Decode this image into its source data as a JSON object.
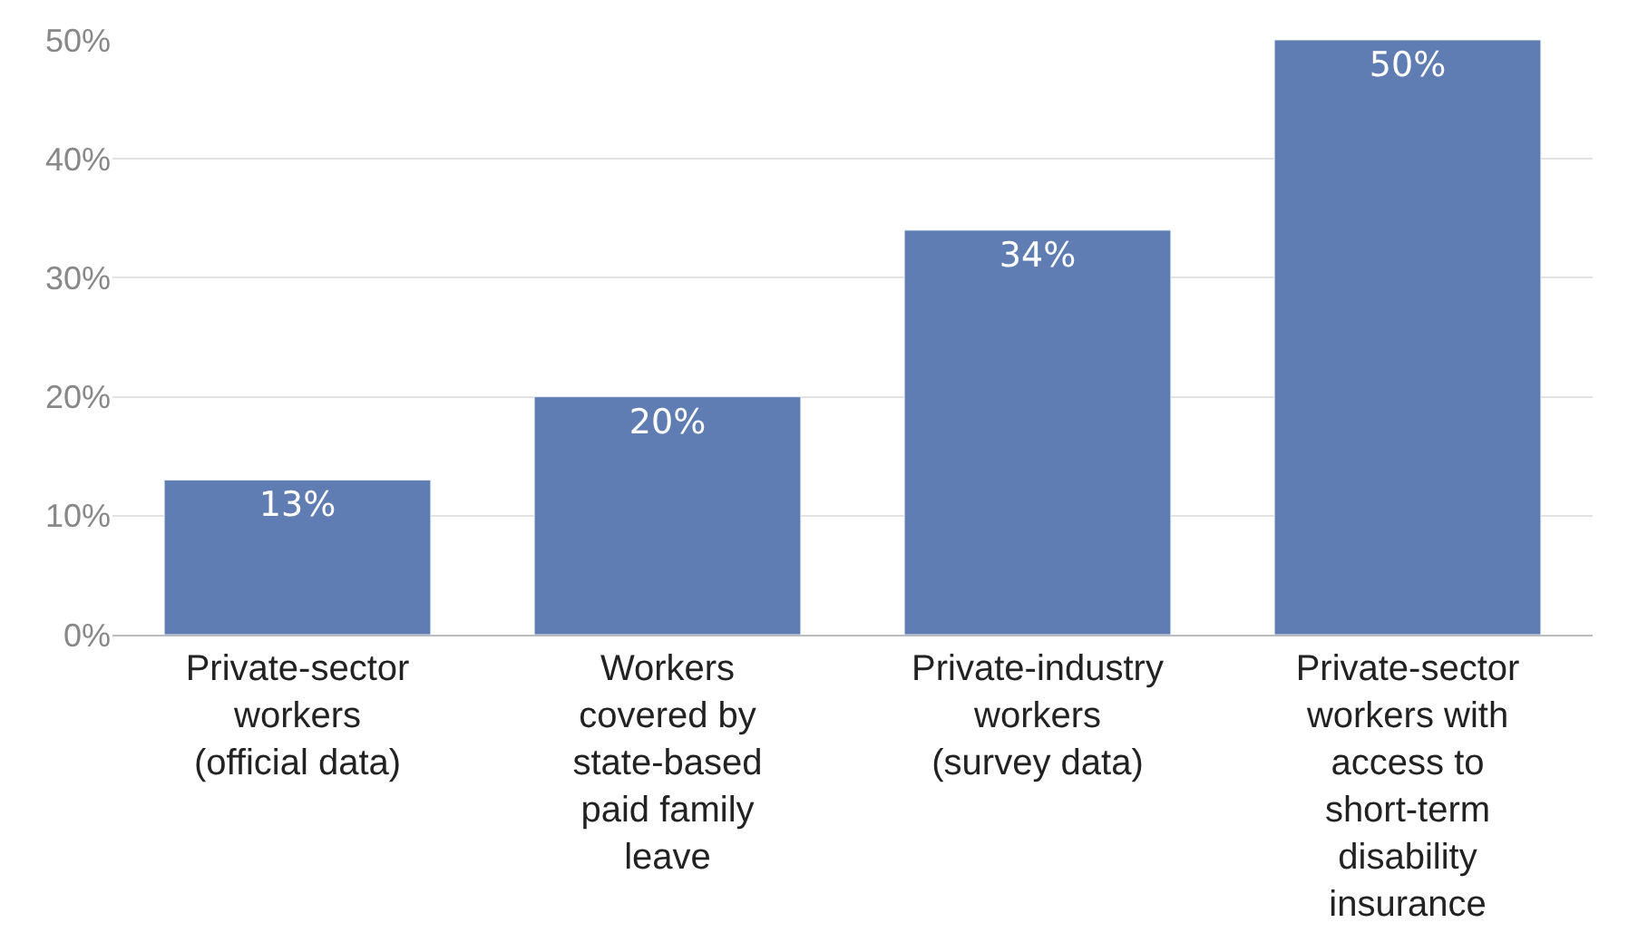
{
  "chart_data": {
    "type": "bar",
    "categories": [
      "Private-sector\nworkers\n(official data)",
      "Workers\ncovered by\nstate-based\npaid family\nleave",
      "Private-industry\nworkers\n(survey data)",
      "Private-sector\nworkers with\naccess to\nshort-term\ndisability\ninsurance"
    ],
    "values": [
      13,
      20,
      34,
      50
    ],
    "value_labels": [
      "13%",
      "20%",
      "34%",
      "50%"
    ],
    "color": "#607db3",
    "ylim": [
      0,
      50
    ],
    "yticks": [
      {
        "value": 0,
        "label": "0%"
      },
      {
        "value": 10,
        "label": "10%"
      },
      {
        "value": 20,
        "label": "20%"
      },
      {
        "value": 30,
        "label": "30%"
      },
      {
        "value": 40,
        "label": "40%"
      },
      {
        "value": 50,
        "label": "50%"
      }
    ],
    "grid": "y"
  }
}
